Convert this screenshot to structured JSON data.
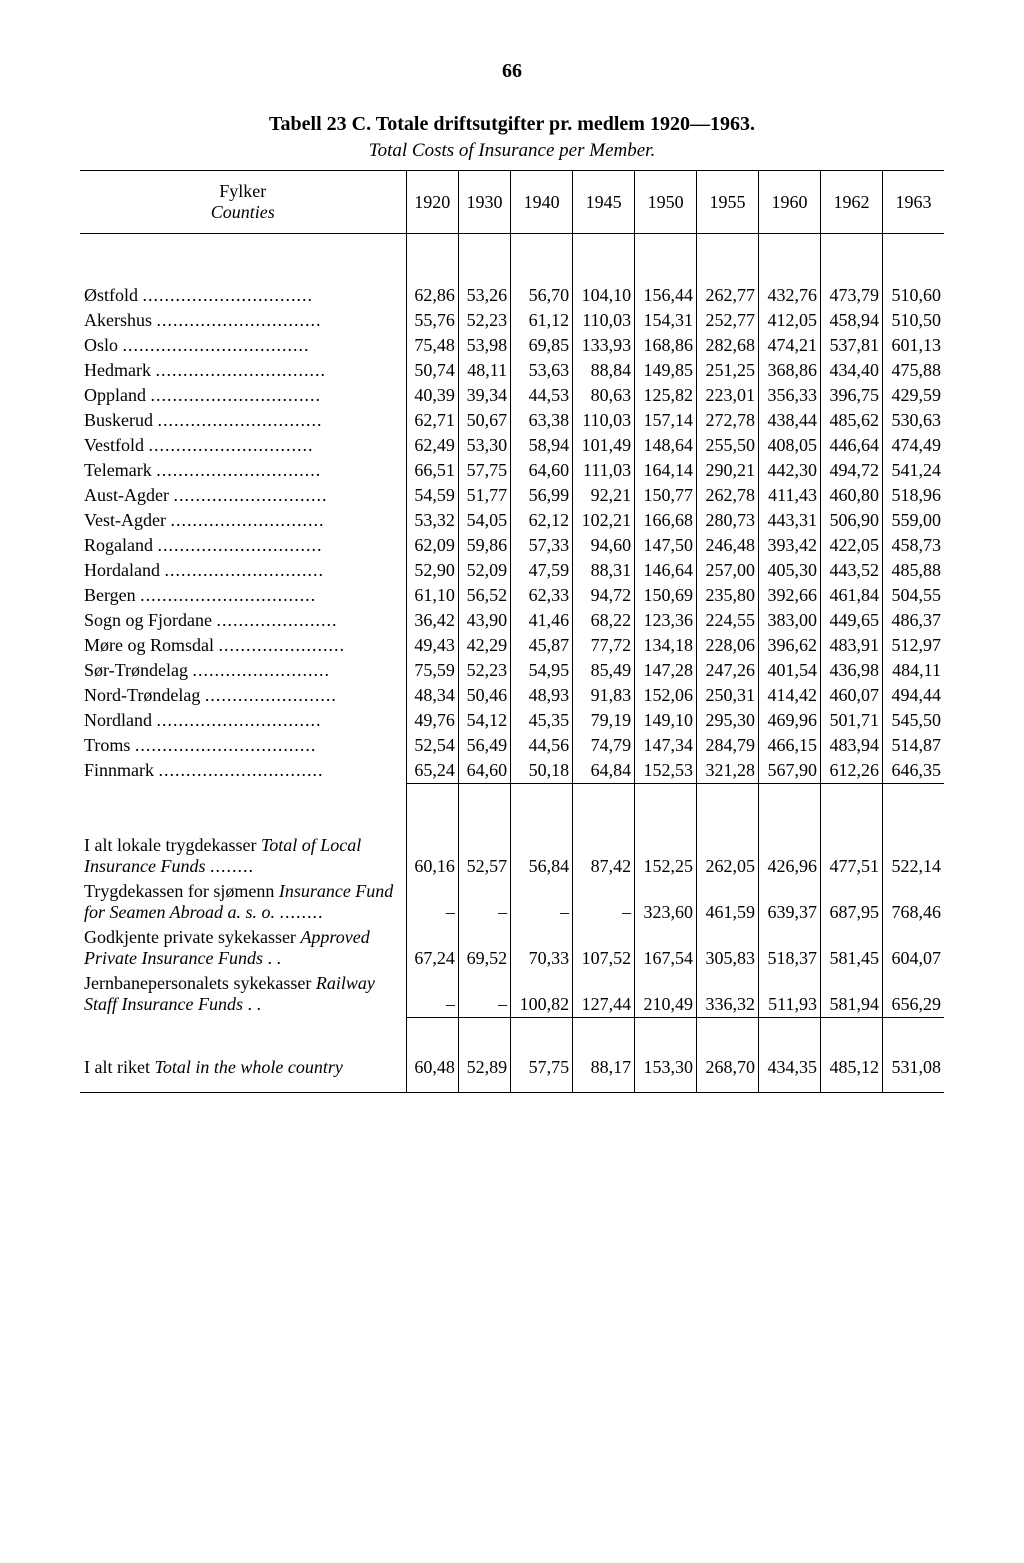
{
  "page_number": "66",
  "title": "Tabell 23 C. Totale driftsutgifter pr. medlem 1920—1963.",
  "subtitle": "Total Costs of Insurance per Member.",
  "header": {
    "label_nor": "Fylker",
    "label_eng": "Counties",
    "years": [
      "1920",
      "1930",
      "1940",
      "1945",
      "1950",
      "1955",
      "1960",
      "1962",
      "1963"
    ]
  },
  "rows": [
    {
      "label": "Østfold",
      "values": [
        "62,86",
        "53,26",
        "56,70",
        "104,10",
        "156,44",
        "262,77",
        "432,76",
        "473,79",
        "510,60"
      ]
    },
    {
      "label": "Akershus",
      "values": [
        "55,76",
        "52,23",
        "61,12",
        "110,03",
        "154,31",
        "252,77",
        "412,05",
        "458,94",
        "510,50"
      ]
    },
    {
      "label": "Oslo",
      "values": [
        "75,48",
        "53,98",
        "69,85",
        "133,93",
        "168,86",
        "282,68",
        "474,21",
        "537,81",
        "601,13"
      ]
    },
    {
      "label": "Hedmark",
      "values": [
        "50,74",
        "48,11",
        "53,63",
        "88,84",
        "149,85",
        "251,25",
        "368,86",
        "434,40",
        "475,88"
      ]
    },
    {
      "label": "Oppland",
      "values": [
        "40,39",
        "39,34",
        "44,53",
        "80,63",
        "125,82",
        "223,01",
        "356,33",
        "396,75",
        "429,59"
      ]
    },
    {
      "label": "Buskerud",
      "values": [
        "62,71",
        "50,67",
        "63,38",
        "110,03",
        "157,14",
        "272,78",
        "438,44",
        "485,62",
        "530,63"
      ]
    },
    {
      "label": "Vestfold",
      "values": [
        "62,49",
        "53,30",
        "58,94",
        "101,49",
        "148,64",
        "255,50",
        "408,05",
        "446,64",
        "474,49"
      ]
    },
    {
      "label": "Telemark",
      "values": [
        "66,51",
        "57,75",
        "64,60",
        "111,03",
        "164,14",
        "290,21",
        "442,30",
        "494,72",
        "541,24"
      ]
    },
    {
      "label": "Aust-Agder",
      "values": [
        "54,59",
        "51,77",
        "56,99",
        "92,21",
        "150,77",
        "262,78",
        "411,43",
        "460,80",
        "518,96"
      ]
    },
    {
      "label": "Vest-Agder",
      "values": [
        "53,32",
        "54,05",
        "62,12",
        "102,21",
        "166,68",
        "280,73",
        "443,31",
        "506,90",
        "559,00"
      ]
    },
    {
      "label": "Rogaland",
      "values": [
        "62,09",
        "59,86",
        "57,33",
        "94,60",
        "147,50",
        "246,48",
        "393,42",
        "422,05",
        "458,73"
      ]
    },
    {
      "label": "Hordaland",
      "values": [
        "52,90",
        "52,09",
        "47,59",
        "88,31",
        "146,64",
        "257,00",
        "405,30",
        "443,52",
        "485,88"
      ]
    },
    {
      "label": "Bergen",
      "values": [
        "61,10",
        "56,52",
        "62,33",
        "94,72",
        "150,69",
        "235,80",
        "392,66",
        "461,84",
        "504,55"
      ]
    },
    {
      "label": "Sogn og Fjordane",
      "values": [
        "36,42",
        "43,90",
        "41,46",
        "68,22",
        "123,36",
        "224,55",
        "383,00",
        "449,65",
        "486,37"
      ]
    },
    {
      "label": "Møre og Romsdal",
      "values": [
        "49,43",
        "42,29",
        "45,87",
        "77,72",
        "134,18",
        "228,06",
        "396,62",
        "483,91",
        "512,97"
      ]
    },
    {
      "label": "Sør-Trøndelag",
      "values": [
        "75,59",
        "52,23",
        "54,95",
        "85,49",
        "147,28",
        "247,26",
        "401,54",
        "436,98",
        "484,11"
      ]
    },
    {
      "label": "Nord-Trøndelag",
      "values": [
        "48,34",
        "50,46",
        "48,93",
        "91,83",
        "152,06",
        "250,31",
        "414,42",
        "460,07",
        "494,44"
      ]
    },
    {
      "label": "Nordland",
      "values": [
        "49,76",
        "54,12",
        "45,35",
        "79,19",
        "149,10",
        "295,30",
        "469,96",
        "501,71",
        "545,50"
      ]
    },
    {
      "label": "Troms",
      "values": [
        "52,54",
        "56,49",
        "44,56",
        "74,79",
        "147,34",
        "284,79",
        "466,15",
        "483,94",
        "514,87"
      ]
    },
    {
      "label": "Finnmark",
      "values": [
        "65,24",
        "64,60",
        "50,18",
        "64,84",
        "152,53",
        "321,28",
        "567,90",
        "612,26",
        "646,35"
      ]
    }
  ],
  "summary_rows": [
    {
      "label_html": "I alt lokale trygdekasser <span class='italic'>Total of Local Insurance Funds</span>",
      "dots": true,
      "values": [
        "60,16",
        "52,57",
        "56,84",
        "87,42",
        "152,25",
        "262,05",
        "426,96",
        "477,51",
        "522,14"
      ]
    },
    {
      "label_html": "Trygdekassen for sjømenn <span class='italic'>Insurance Fund for Seamen Abroad a. s. o.</span>",
      "dots": true,
      "values": [
        "–",
        "–",
        "–",
        "–",
        "323,60",
        "461,59",
        "639,37",
        "687,95",
        "768,46"
      ]
    },
    {
      "label_html": "Godkjente private sykekasser <span class='italic'>Approved Private Insurance Funds</span> . .",
      "dots": false,
      "values": [
        "67,24",
        "69,52",
        "70,33",
        "107,52",
        "167,54",
        "305,83",
        "518,37",
        "581,45",
        "604,07"
      ]
    },
    {
      "label_html": "Jernbanepersonalets sykekasser <span class='italic'>Railway Staff Insurance Funds</span> . .",
      "dots": false,
      "values": [
        "–",
        "–",
        "100,82",
        "127,44",
        "210,49",
        "336,32",
        "511,93",
        "581,94",
        "656,29"
      ]
    }
  ],
  "total_row": {
    "label_html": "I alt riket <span class='italic'>Total in the whole country</span>",
    "values": [
      "60,48",
      "52,89",
      "57,75",
      "88,17",
      "153,30",
      "268,70",
      "434,35",
      "485,12",
      "531,08"
    ]
  },
  "label_col_width": 38
}
